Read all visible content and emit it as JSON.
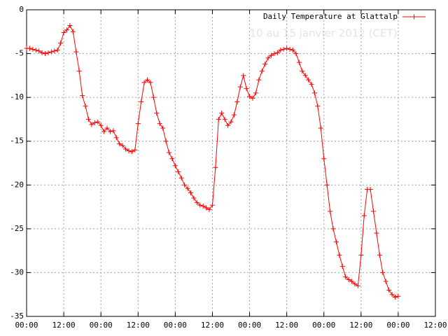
{
  "chart_data": {
    "type": "line",
    "subtitle": "10 au 15 janvier 2012 (CET)",
    "x": [
      0,
      1,
      2,
      3,
      4,
      5,
      6,
      7,
      8,
      9,
      10,
      11,
      12,
      13,
      14,
      15,
      16,
      17,
      18,
      19,
      20,
      21,
      22,
      23,
      24,
      25,
      26,
      27,
      28,
      29,
      30,
      31,
      32,
      33,
      34,
      35,
      36,
      37,
      38,
      39,
      40,
      41,
      42,
      43,
      44,
      45,
      46,
      47,
      48,
      49,
      50,
      51,
      52,
      53,
      54,
      55,
      56,
      57,
      58,
      59,
      60,
      61,
      62,
      63,
      64,
      65,
      66,
      67,
      68,
      69,
      70,
      71,
      72,
      73,
      74,
      75,
      76,
      77,
      78,
      79,
      80,
      81,
      82,
      83,
      84,
      85,
      86,
      87,
      88,
      89,
      90,
      91,
      92,
      93,
      94,
      95,
      96,
      97,
      98,
      99,
      100,
      101,
      102,
      103,
      104,
      105,
      106,
      107,
      108,
      109,
      110,
      111,
      112,
      113,
      114,
      115,
      116,
      117,
      118,
      119,
      120
    ],
    "series": [
      {
        "name": "Daily Temperature at Glattalp",
        "color": "#ff0000",
        "values": [
          -4.4,
          -4.4,
          -4.5,
          -4.6,
          -4.7,
          -4.9,
          -5.0,
          -4.9,
          -4.8,
          -4.7,
          -4.6,
          -3.8,
          -2.6,
          -2.3,
          -1.8,
          -2.5,
          -4.8,
          -7.0,
          -9.8,
          -11.0,
          -12.5,
          -13.1,
          -12.9,
          -12.8,
          -13.2,
          -13.9,
          -13.5,
          -13.9,
          -13.8,
          -14.6,
          -15.3,
          -15.5,
          -15.9,
          -16.1,
          -16.2,
          -16.0,
          -13.0,
          -10.5,
          -8.3,
          -8.0,
          -8.3,
          -10.0,
          -11.8,
          -13.0,
          -13.5,
          -15.0,
          -16.3,
          -17.0,
          -17.8,
          -18.5,
          -19.2,
          -20.0,
          -20.4,
          -20.9,
          -21.5,
          -22.0,
          -22.3,
          -22.4,
          -22.6,
          -22.8,
          -22.3,
          -18.0,
          -12.5,
          -11.8,
          -12.5,
          -13.2,
          -12.8,
          -12.0,
          -10.5,
          -8.8,
          -7.5,
          -9.0,
          -9.9,
          -10.1,
          -9.5,
          -8.0,
          -7.0,
          -6.2,
          -5.5,
          -5.2,
          -5.0,
          -4.9,
          -4.6,
          -4.5,
          -4.4,
          -4.5,
          -4.6,
          -5.0,
          -6.0,
          -7.0,
          -7.5,
          -8.0,
          -8.5,
          -9.5,
          -11.0,
          -13.5,
          -17.0,
          -20.0,
          -23.0,
          -25.0,
          -26.5,
          -28.0,
          -29.3,
          -30.5,
          -30.8,
          -31.0,
          -31.3,
          -31.5,
          -28.0,
          -23.5,
          -20.5,
          -20.5,
          -23.0,
          -25.5,
          -28.0,
          -30.0,
          -31.0,
          -32.0,
          -32.5,
          -32.8,
          -32.7
        ]
      }
    ],
    "xlim": [
      0,
      132
    ],
    "xticks": [
      {
        "value": 0,
        "label": "00:00"
      },
      {
        "value": 12,
        "label": "12:00"
      },
      {
        "value": 24,
        "label": "00:00"
      },
      {
        "value": 36,
        "label": "12:00"
      },
      {
        "value": 48,
        "label": "00:00"
      },
      {
        "value": 60,
        "label": "12:00"
      },
      {
        "value": 72,
        "label": "00:00"
      },
      {
        "value": 84,
        "label": "12:00"
      },
      {
        "value": 96,
        "label": "00:00"
      },
      {
        "value": 108,
        "label": "12:00"
      },
      {
        "value": 120,
        "label": "00:00"
      },
      {
        "value": 132,
        "label": "12:00"
      }
    ],
    "ylim": [
      -35,
      0
    ],
    "yticks": [
      -35,
      -30,
      -25,
      -20,
      -15,
      -10,
      -5,
      0
    ],
    "grid": true,
    "legend": "top-right"
  }
}
